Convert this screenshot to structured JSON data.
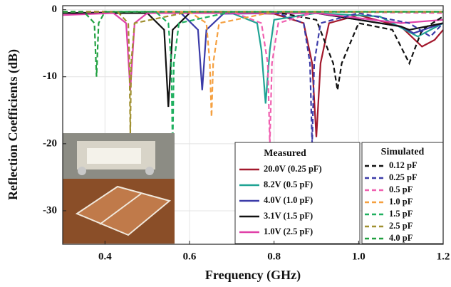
{
  "chart_data": {
    "type": "line",
    "xlabel": "Frequency (GHz)",
    "ylabel": "Reflection Coefficients (dB)",
    "xlim": [
      0.3,
      1.2
    ],
    "ylim": [
      -35,
      0.6
    ],
    "xticks": [
      0.4,
      0.6,
      0.8,
      {
        "value": 1,
        "label": "1.0"
      },
      1.2
    ],
    "yticks": [
      0,
      -10,
      -20,
      -30
    ],
    "grid": true,
    "legend_titles": [
      "Measured",
      "Simulated"
    ],
    "series": [
      {
        "name": "20.0V (0.25 pF)",
        "color": "#a3182c",
        "style": "solid",
        "x": [
          0.3,
          0.5,
          0.8,
          0.87,
          0.89,
          0.9,
          0.91,
          0.93,
          1.0,
          1.1,
          1.15,
          1.18,
          1.2
        ],
        "values": [
          -0.5,
          -0.3,
          -0.6,
          -2,
          -8,
          -19,
          -8,
          -2,
          -0.8,
          -2.5,
          -5.5,
          -4.5,
          -3
        ]
      },
      {
        "name": "8.2V (0.5 pF)",
        "color": "#1fa394",
        "style": "solid",
        "x": [
          0.3,
          0.7,
          0.76,
          0.77,
          0.78,
          0.79,
          0.8,
          0.9,
          1.05,
          1.14,
          1.2
        ],
        "values": [
          -0.5,
          -0.5,
          -2,
          -6,
          -14,
          -6,
          -1.5,
          -0.5,
          -1,
          -4,
          -2
        ]
      },
      {
        "name": "4.0V (1.0 pF)",
        "color": "#3b3ba8",
        "style": "solid",
        "x": [
          0.3,
          0.58,
          0.62,
          0.63,
          0.64,
          0.68,
          0.9,
          1.1,
          1.13,
          1.2
        ],
        "values": [
          -0.5,
          -0.5,
          -3,
          -12,
          -3,
          -0.6,
          -0.5,
          -2.5,
          -3.5,
          -2
        ]
      },
      {
        "name": "3.1V (1.5 pF)",
        "color": "#111111",
        "style": "solid",
        "x": [
          0.3,
          0.5,
          0.54,
          0.55,
          0.56,
          0.6,
          0.9,
          1.1,
          1.12,
          1.2
        ],
        "values": [
          -0.5,
          -0.5,
          -3,
          -14.5,
          -3,
          -0.5,
          -0.5,
          -2.5,
          -3,
          -2
        ]
      },
      {
        "name": "1.0V (2.5 pF)",
        "color": "#e040a8",
        "style": "solid",
        "x": [
          0.3,
          0.42,
          0.45,
          0.46,
          0.47,
          0.5,
          0.9,
          1.1,
          1.2
        ],
        "values": [
          -0.8,
          -0.5,
          -2,
          -12,
          -2,
          -0.5,
          -0.5,
          -2,
          -1.5
        ]
      },
      {
        "name": "0.12 pF",
        "color": "#111111",
        "style": "dashed",
        "x": [
          0.3,
          0.8,
          0.9,
          0.94,
          0.95,
          0.96,
          1.0,
          1.08,
          1.12,
          1.15,
          1.2
        ],
        "values": [
          -0.3,
          -0.3,
          -1.5,
          -8,
          -12,
          -8,
          -2,
          -3,
          -8,
          -3,
          -1
        ]
      },
      {
        "name": "0.25 pF",
        "color": "#3b3ba8",
        "style": "dashed",
        "x": [
          0.3,
          0.8,
          0.87,
          0.885,
          0.89,
          0.895,
          0.91,
          1.0,
          1.12,
          1.17,
          1.2
        ],
        "values": [
          -0.3,
          -0.3,
          -2,
          -8,
          -20,
          -8,
          -2,
          -0.5,
          -2,
          -4,
          -2
        ]
      },
      {
        "name": "0.5 pF",
        "color": "#f060b0",
        "style": "dashed",
        "x": [
          0.3,
          0.7,
          0.77,
          0.785,
          0.79,
          0.795,
          0.81,
          0.9,
          1.2
        ],
        "values": [
          -0.3,
          -0.3,
          -2,
          -8,
          -20,
          -8,
          -2,
          -0.3,
          -0.5
        ]
      },
      {
        "name": "1.0 pF",
        "color": "#f5a040",
        "style": "dashed",
        "x": [
          0.3,
          0.6,
          0.64,
          0.648,
          0.652,
          0.656,
          0.67,
          0.8,
          1.2
        ],
        "values": [
          -0.3,
          -0.3,
          -2,
          -8,
          -16,
          -8,
          -2,
          -0.3,
          -0.3
        ]
      },
      {
        "name": "1.5 pF",
        "color": "#20b060",
        "style": "dashed",
        "x": [
          0.3,
          0.52,
          0.55,
          0.557,
          0.56,
          0.563,
          0.575,
          0.7,
          1.2
        ],
        "values": [
          -0.3,
          -0.3,
          -2,
          -8,
          -21,
          -8,
          -2,
          -0.3,
          -0.3
        ]
      },
      {
        "name": "2.5 pF",
        "color": "#a09030",
        "style": "dashed",
        "x": [
          0.3,
          0.43,
          0.455,
          0.458,
          0.46,
          0.462,
          0.47,
          0.6,
          1.2
        ],
        "values": [
          -0.3,
          -0.3,
          -2,
          -8,
          -18.5,
          -8,
          -2,
          -0.3,
          -0.3
        ]
      },
      {
        "name": "4.0 pF",
        "color": "#20a040",
        "style": "dashed",
        "x": [
          0.3,
          0.35,
          0.375,
          0.38,
          0.385,
          0.4,
          0.6,
          1.2
        ],
        "values": [
          -0.3,
          -0.3,
          -2,
          -10,
          -2,
          -0.3,
          -0.3,
          -0.3
        ]
      }
    ]
  }
}
